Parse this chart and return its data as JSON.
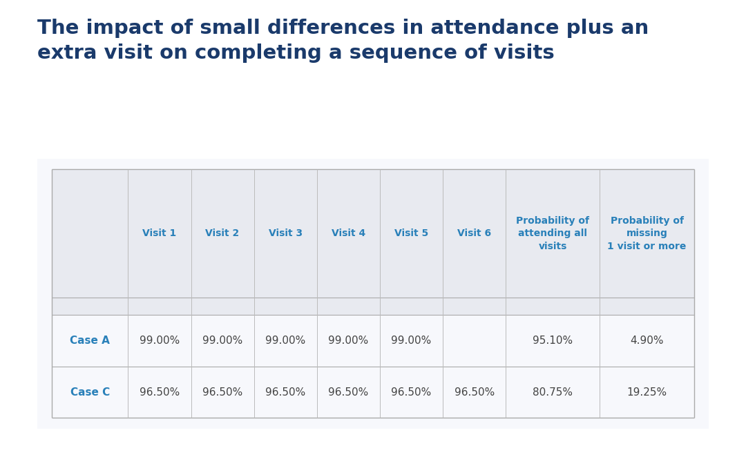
{
  "title_line1": "The impact of small differences in attendance plus an",
  "title_line2": "extra visit on completing a sequence of visits",
  "title_color": "#1a3a6b",
  "title_fontsize": 21,
  "background_color": "#ffffff",
  "header_bg_color": "#e8eaf0",
  "header_text_color": "#2980b9",
  "row_label_color": "#2980b9",
  "cell_text_color": "#444444",
  "border_color": "#bbbbbb",
  "table_outline_color": "#cccccc",
  "col_headers": [
    "Visit 1",
    "Visit 2",
    "Visit 3",
    "Visit 4",
    "Visit 5",
    "Visit 6",
    "Probability of\nattending all\nvisits",
    "Probability of\nmissing\n1 visit or more"
  ],
  "row_labels": [
    "Case A",
    "Case C"
  ],
  "row_data": [
    [
      "99.00%",
      "99.00%",
      "99.00%",
      "99.00%",
      "99.00%",
      "",
      "95.10%",
      "4.90%"
    ],
    [
      "96.50%",
      "96.50%",
      "96.50%",
      "96.50%",
      "96.50%",
      "96.50%",
      "80.75%",
      "19.25%"
    ]
  ],
  "header_fontsize": 10,
  "cell_fontsize": 11,
  "row_label_fontsize": 11
}
